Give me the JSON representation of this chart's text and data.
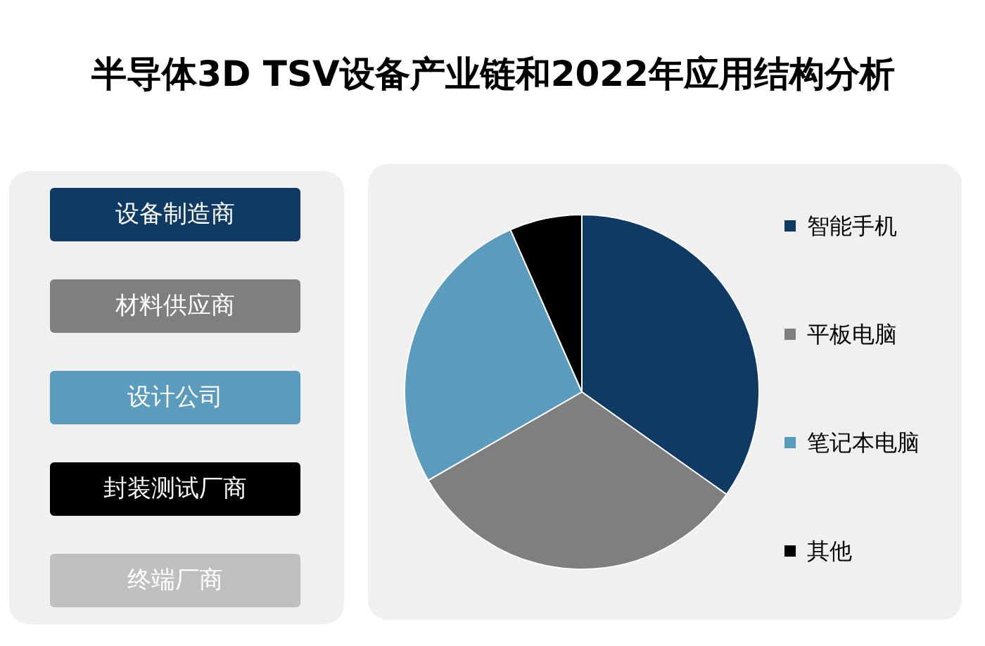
{
  "chart_data": [
    {
      "type": "other",
      "title": "半导体3D TSV设备产业链和2022年应用结构分析",
      "annotations": [
        "设备制造商",
        "材料供应商",
        "设计公司",
        "封装测试厂商",
        "终端厂商"
      ]
    },
    {
      "type": "pie",
      "categories": [
        "智能手机",
        "平板电脑",
        "笔记本电脑",
        "其他"
      ],
      "values": [
        34.8,
        31.9,
        26.7,
        6.6
      ],
      "colors": [
        "#0e3a63",
        "#7f7f7f",
        "#5b9bbd",
        "#000000"
      ],
      "legend": "right"
    }
  ]
}
